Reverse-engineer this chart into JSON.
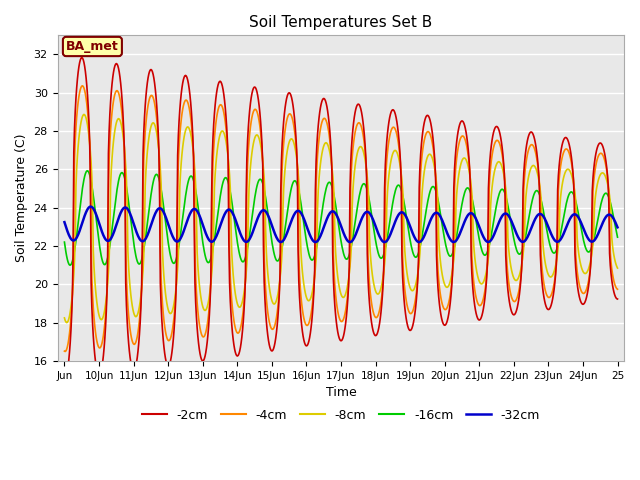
{
  "title": "Soil Temperatures Set B",
  "xlabel": "Time",
  "ylabel": "Soil Temperature (C)",
  "annotation": "BA_met",
  "ylim": [
    16,
    33
  ],
  "yticks": [
    16,
    18,
    20,
    22,
    24,
    26,
    28,
    30,
    32
  ],
  "bg_color": "#e8e8e8",
  "tick_labels": [
    "Jun",
    "10Jun",
    "11Jun",
    "12Jun",
    "13Jun",
    "14Jun",
    "15Jun",
    "16Jun",
    "17Jun",
    "18Jun",
    "19Jun",
    "20Jun",
    "21Jun",
    "22Jun",
    "23Jun",
    "24Jun",
    "25"
  ],
  "series_colors": [
    "#cc0000",
    "#ff8800",
    "#ddcc00",
    "#00cc00",
    "#0000cc"
  ],
  "series_labels": [
    "-2cm",
    "-4cm",
    "-8cm",
    "-16cm",
    "-32cm"
  ],
  "series_linewidths": [
    1.2,
    1.2,
    1.2,
    1.2,
    1.5
  ]
}
